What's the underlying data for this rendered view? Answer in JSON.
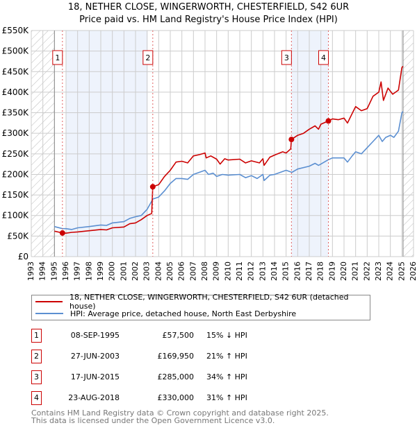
{
  "chart_data": {
    "type": "line",
    "title": "18, NETHER CLOSE, WINGERWORTH, CHESTERFIELD, S42 6UR",
    "subtitle": "Price paid vs. HM Land Registry's House Price Index (HPI)",
    "xlim": [
      1993,
      2026
    ],
    "ylim": [
      0,
      550000
    ],
    "x_ticks": [
      "1993",
      "1994",
      "1995",
      "1996",
      "1997",
      "1998",
      "1999",
      "2000",
      "2001",
      "2002",
      "2003",
      "2004",
      "2005",
      "2006",
      "2007",
      "2008",
      "2009",
      "2010",
      "2011",
      "2012",
      "2013",
      "2014",
      "2015",
      "2016",
      "2017",
      "2018",
      "2019",
      "2020",
      "2021",
      "2022",
      "2023",
      "2024",
      "2025",
      "2026"
    ],
    "y_ticks": [
      {
        "v": 0,
        "label": "£0"
      },
      {
        "v": 50000,
        "label": "£50K"
      },
      {
        "v": 100000,
        "label": "£100K"
      },
      {
        "v": 150000,
        "label": "£150K"
      },
      {
        "v": 200000,
        "label": "£200K"
      },
      {
        "v": 250000,
        "label": "£250K"
      },
      {
        "v": 300000,
        "label": "£300K"
      },
      {
        "v": 350000,
        "label": "£350K"
      },
      {
        "v": 400000,
        "label": "£400K"
      },
      {
        "v": 450000,
        "label": "£450K"
      },
      {
        "v": 500000,
        "label": "£500K"
      },
      {
        "v": 550000,
        "label": "£550K"
      }
    ],
    "grid": true,
    "hatched_ranges": [
      [
        1993,
        1995
      ],
      [
        2025.1,
        2026
      ]
    ],
    "shaded_ranges": [
      [
        1996,
        2003.05
      ],
      [
        2015.46,
        2018.65
      ]
    ],
    "series": [
      {
        "name": "18, NETHER CLOSE, WINGERWORTH, CHESTERFIELD, S42 6UR (detached house)",
        "color": "#cc0000",
        "points": [
          [
            1995,
            62
          ],
          [
            1995.7,
            57.5
          ],
          [
            1996,
            57
          ],
          [
            1996.5,
            59
          ],
          [
            1997,
            60
          ],
          [
            1998,
            63
          ],
          [
            1999,
            66
          ],
          [
            1999.5,
            65
          ],
          [
            2000,
            70
          ],
          [
            2001,
            72
          ],
          [
            2001.5,
            80
          ],
          [
            2002,
            82
          ],
          [
            2002.5,
            90
          ],
          [
            2003,
            100
          ],
          [
            2003.4,
            105
          ],
          [
            2003.49,
            170
          ],
          [
            2004,
            175
          ],
          [
            2004.5,
            195
          ],
          [
            2005,
            210
          ],
          [
            2005.5,
            230
          ],
          [
            2006,
            232
          ],
          [
            2006.5,
            228
          ],
          [
            2007,
            245
          ],
          [
            2007.5,
            248
          ],
          [
            2008,
            252
          ],
          [
            2008.1,
            240
          ],
          [
            2008.5,
            245
          ],
          [
            2009,
            237
          ],
          [
            2009.3,
            225
          ],
          [
            2009.7,
            238
          ],
          [
            2010,
            235
          ],
          [
            2011,
            237
          ],
          [
            2011.5,
            228
          ],
          [
            2012,
            233
          ],
          [
            2012.7,
            228
          ],
          [
            2013,
            238
          ],
          [
            2013.1,
            222
          ],
          [
            2013.6,
            242
          ],
          [
            2014,
            247
          ],
          [
            2014.7,
            255
          ],
          [
            2015,
            252
          ],
          [
            2015.4,
            262
          ],
          [
            2015.46,
            285
          ],
          [
            2016,
            295
          ],
          [
            2016.5,
            300
          ],
          [
            2017,
            310
          ],
          [
            2017.5,
            318
          ],
          [
            2017.8,
            310
          ],
          [
            2018,
            322
          ],
          [
            2018.65,
            330
          ],
          [
            2019,
            335
          ],
          [
            2019.5,
            333
          ],
          [
            2020,
            337
          ],
          [
            2020.3,
            325
          ],
          [
            2020.7,
            348
          ],
          [
            2021,
            365
          ],
          [
            2021.5,
            355
          ],
          [
            2022,
            360
          ],
          [
            2022.5,
            390
          ],
          [
            2023,
            400
          ],
          [
            2023.2,
            425
          ],
          [
            2023.4,
            380
          ],
          [
            2023.8,
            410
          ],
          [
            2024.2,
            395
          ],
          [
            2024.7,
            405
          ],
          [
            2025,
            460
          ],
          [
            2025.1,
            463
          ]
        ]
      },
      {
        "name": "HPI: Average price, detached house, North East Derbyshire",
        "color": "#5b8fd1",
        "points": [
          [
            1995,
            73
          ],
          [
            1995.7,
            68
          ],
          [
            1996,
            68
          ],
          [
            1996.5,
            66
          ],
          [
            1997,
            70
          ],
          [
            1998,
            73
          ],
          [
            1999,
            77
          ],
          [
            1999.5,
            76
          ],
          [
            2000,
            82
          ],
          [
            2001,
            85
          ],
          [
            2001.5,
            93
          ],
          [
            2002,
            97
          ],
          [
            2002.5,
            100
          ],
          [
            2003,
            115
          ],
          [
            2003.5,
            140
          ],
          [
            2004,
            145
          ],
          [
            2004.5,
            160
          ],
          [
            2005,
            178
          ],
          [
            2005.5,
            190
          ],
          [
            2006,
            190
          ],
          [
            2006.5,
            188
          ],
          [
            2007,
            200
          ],
          [
            2007.5,
            205
          ],
          [
            2008,
            210
          ],
          [
            2008.3,
            200
          ],
          [
            2008.7,
            203
          ],
          [
            2009,
            195
          ],
          [
            2009.5,
            200
          ],
          [
            2010,
            198
          ],
          [
            2011,
            200
          ],
          [
            2011.5,
            192
          ],
          [
            2012,
            197
          ],
          [
            2012.5,
            190
          ],
          [
            2013,
            200
          ],
          [
            2013.1,
            185
          ],
          [
            2013.6,
            198
          ],
          [
            2014,
            200
          ],
          [
            2014.5,
            205
          ],
          [
            2015,
            210
          ],
          [
            2015.5,
            205
          ],
          [
            2016,
            213
          ],
          [
            2017,
            220
          ],
          [
            2017.5,
            227
          ],
          [
            2017.8,
            222
          ],
          [
            2018,
            225
          ],
          [
            2018.6,
            235
          ],
          [
            2019,
            240
          ],
          [
            2020,
            240
          ],
          [
            2020.3,
            230
          ],
          [
            2020.7,
            245
          ],
          [
            2021,
            255
          ],
          [
            2021.5,
            250
          ],
          [
            2022,
            265
          ],
          [
            2022.5,
            280
          ],
          [
            2023,
            295
          ],
          [
            2023.3,
            280
          ],
          [
            2023.6,
            290
          ],
          [
            2024,
            295
          ],
          [
            2024.3,
            290
          ],
          [
            2024.7,
            305
          ],
          [
            2025,
            350
          ],
          [
            2025.1,
            353
          ]
        ]
      }
    ],
    "sales": [
      {
        "num": "1",
        "x": 1995.69,
        "y": 57.5
      },
      {
        "num": "2",
        "x": 2003.49,
        "y": 169.95
      },
      {
        "num": "3",
        "x": 2015.46,
        "y": 285
      },
      {
        "num": "4",
        "x": 2018.65,
        "y": 330
      }
    ]
  },
  "legend": {
    "property": "18, NETHER CLOSE, WINGERWORTH, CHESTERFIELD, S42 6UR (detached house)",
    "hpi": "HPI: Average price, detached house, North East Derbyshire"
  },
  "table": [
    {
      "num": "1",
      "date": "08-SEP-1995",
      "price": "£57,500",
      "hpi": "15% ↓ HPI"
    },
    {
      "num": "2",
      "date": "27-JUN-2003",
      "price": "£169,950",
      "hpi": "21% ↑ HPI"
    },
    {
      "num": "3",
      "date": "17-JUN-2015",
      "price": "£285,000",
      "hpi": "34% ↑ HPI"
    },
    {
      "num": "4",
      "date": "23-AUG-2018",
      "price": "£330,000",
      "hpi": "31% ↑ HPI"
    }
  ],
  "footer": {
    "line1": "Contains HM Land Registry data © Crown copyright and database right 2025.",
    "line2": "This data is licensed under the Open Government Licence v3.0."
  },
  "colors": {
    "property": "#cc0000",
    "hpi": "#5b8fd1",
    "shade": "#eef3fc",
    "grid": "#cccccc"
  }
}
